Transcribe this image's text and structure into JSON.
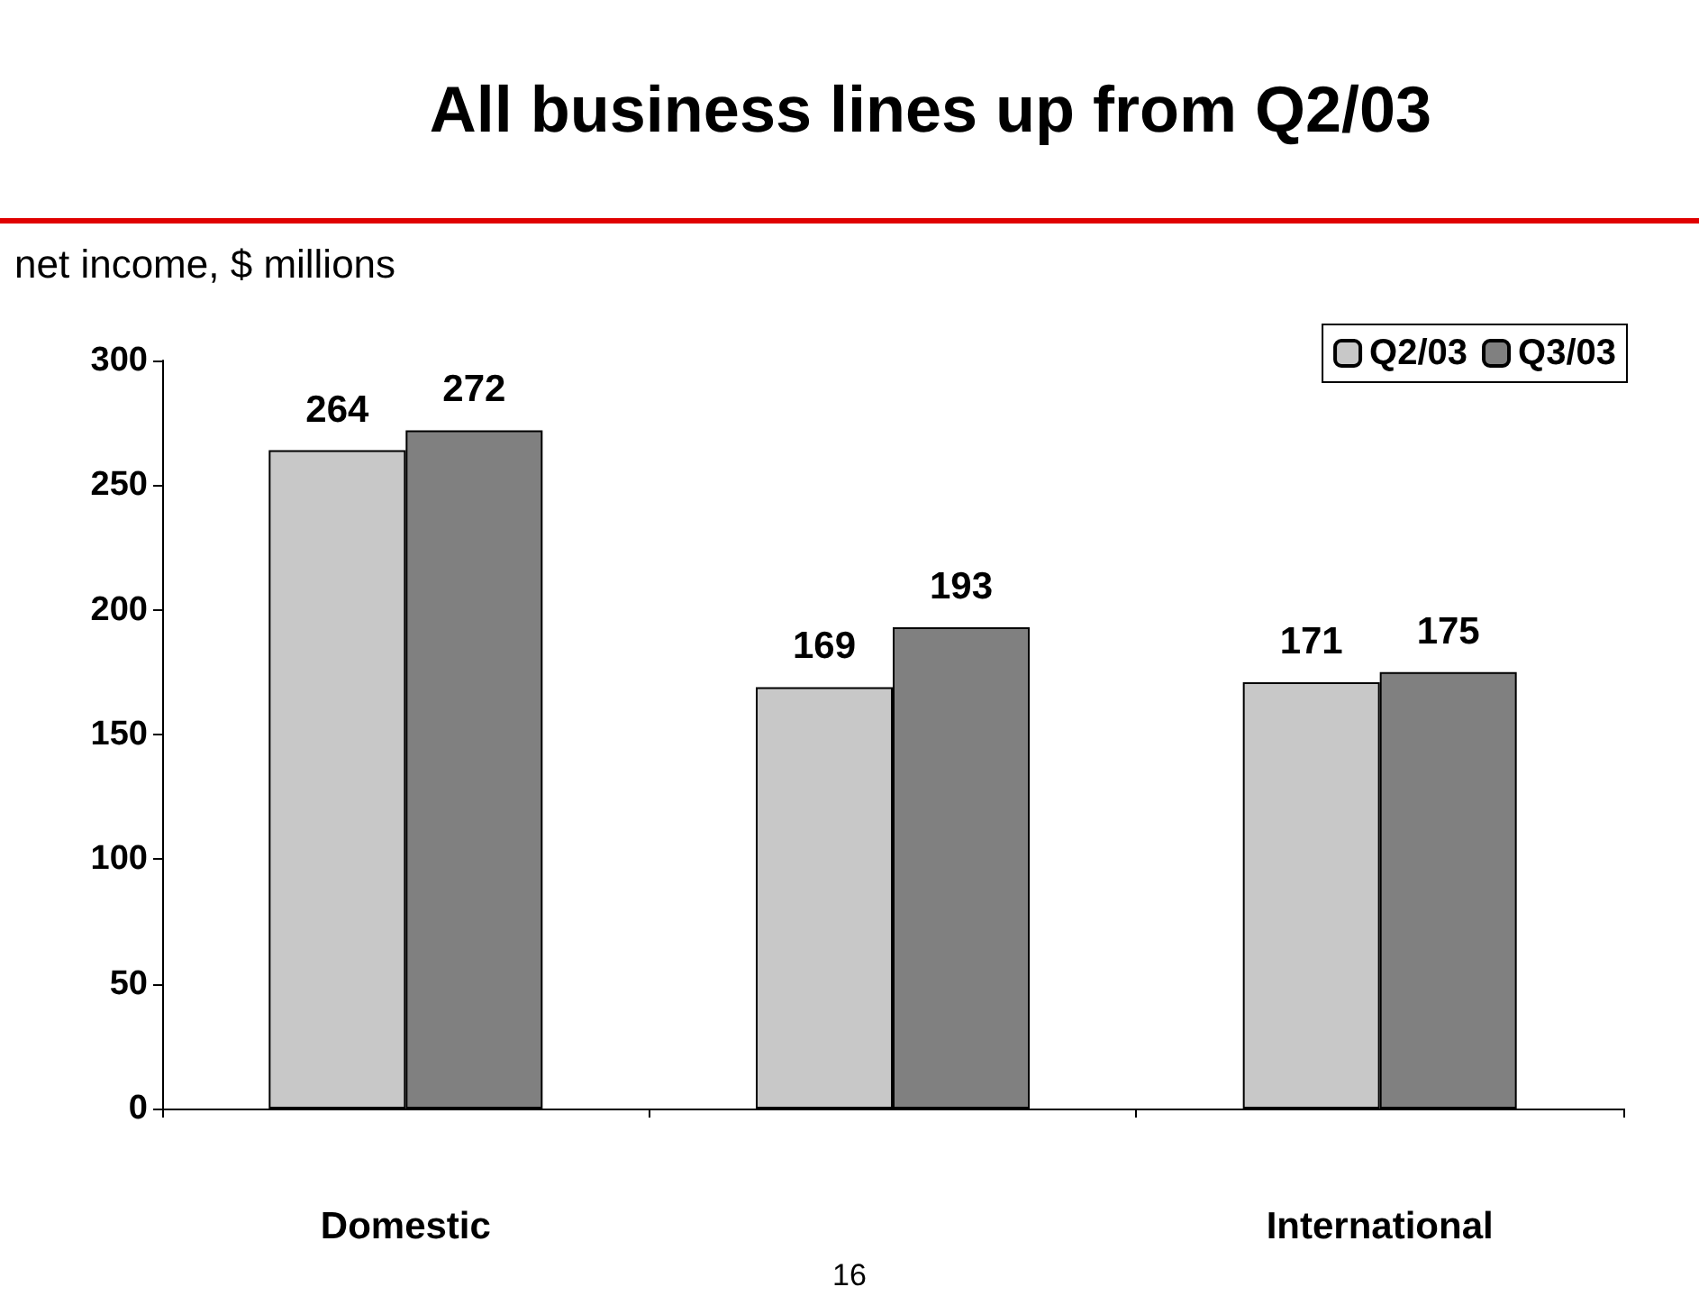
{
  "chart_data": {
    "type": "bar",
    "title": "All business lines up from Q2/03",
    "ylabel": "net income, $ millions",
    "categories": [
      "Domestic",
      null,
      "International"
    ],
    "series": [
      {
        "name": "Q2/03",
        "color": "#c8c8c8",
        "values": [
          264,
          169,
          171
        ]
      },
      {
        "name": "Q3/03",
        "color": "#808080",
        "values": [
          272,
          193,
          175
        ]
      }
    ],
    "ylim": [
      0,
      300
    ],
    "yticks": [
      0,
      50,
      100,
      150,
      200,
      250,
      300
    ],
    "grid": false,
    "legend": "top right",
    "data_labels": true,
    "annotations": [
      "16"
    ]
  }
}
